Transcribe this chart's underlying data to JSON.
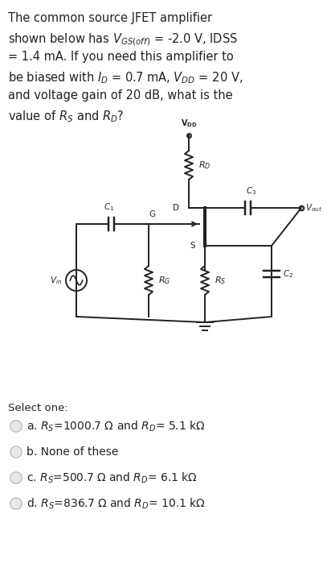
{
  "bg_color": "#ffffff",
  "text_color": "#222222",
  "circuit_color": "#222222",
  "question_lines": [
    "The common source JFET amplifier",
    "shown below has $V_{GS(off)}$ = -2.0 V, IDSS",
    "= 1.4 mA. If you need this amplifier to",
    "be biased with $I_D$ = 0.7 mA, $V_{DD}$ = 20 V,",
    "and voltage gain of 20 dB, what is the",
    "value of $R_S$ and $R_D$?"
  ],
  "select_label": "Select one:",
  "options": [
    "a. $R_S$=1000.7 $\\Omega$ and $R_D$= 5.1 k$\\Omega$",
    "b. None of these",
    "c. $R_S$=500.7 $\\Omega$ and $R_D$= 6.1 k$\\Omega$",
    "d. $R_S$=836.7 $\\Omega$ and $R_D$= 10.1 k$\\Omega$"
  ],
  "font_size_q": 10.5,
  "font_size_opt": 10.0,
  "font_size_select": 9.5
}
